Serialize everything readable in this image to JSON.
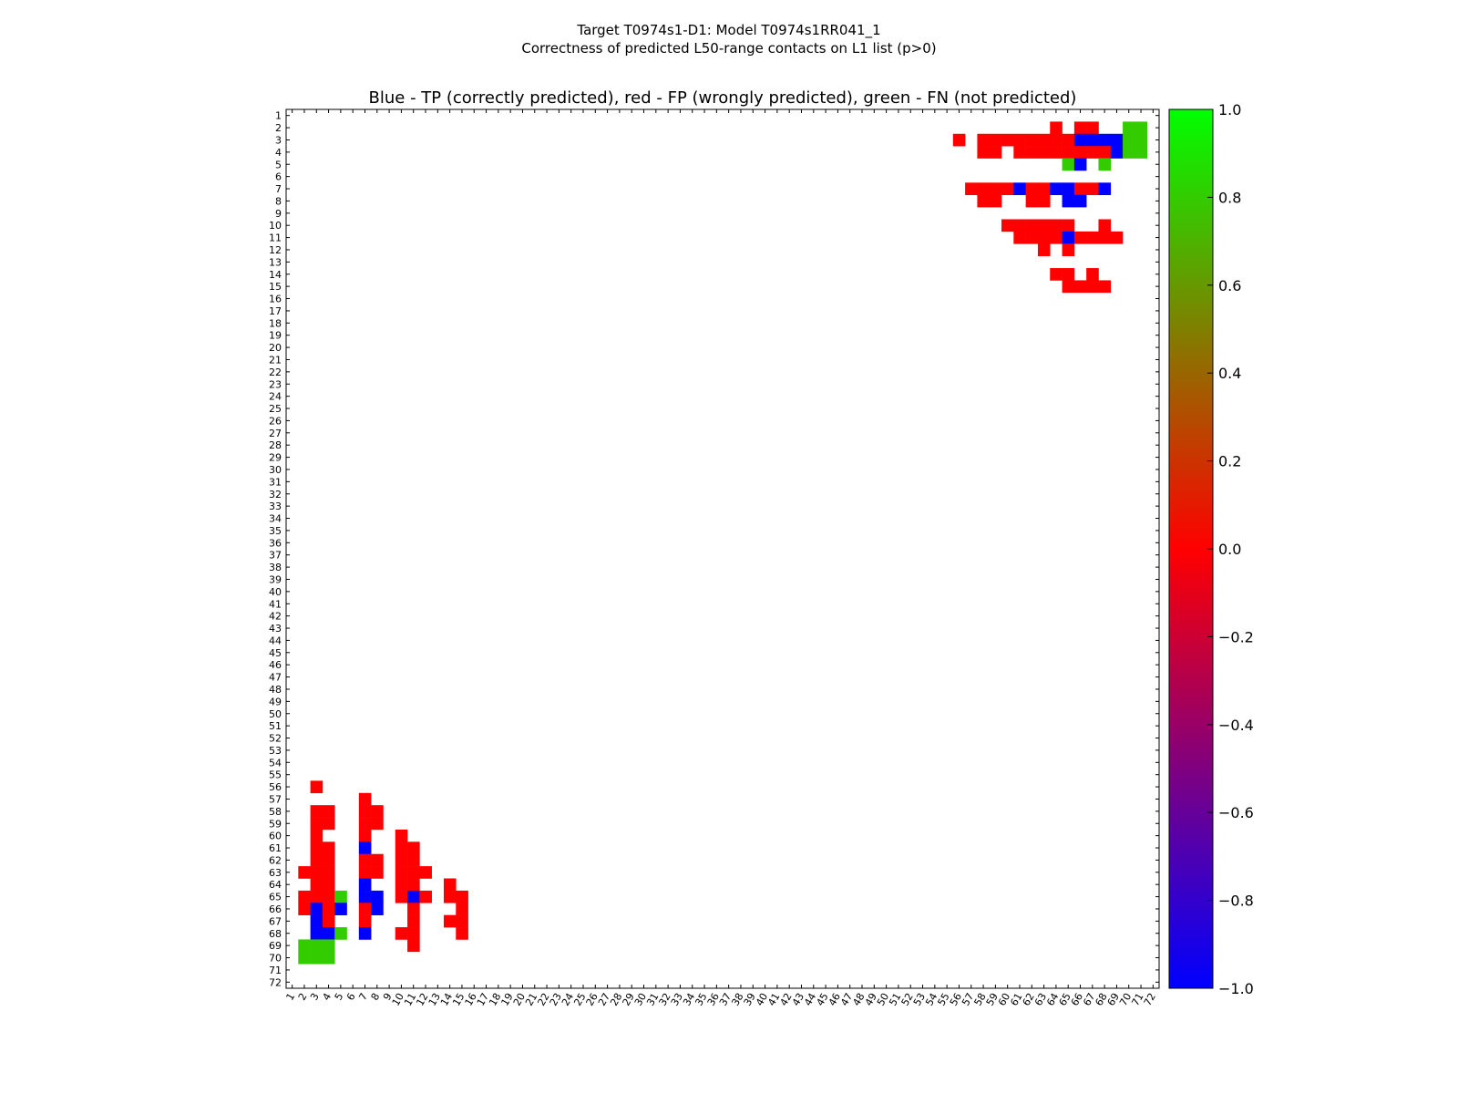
{
  "figure": {
    "suptitle_line1": "Target T0974s1-D1: Model T0974s1RR041_1",
    "suptitle_line2": "Correctness of predicted L50-range contacts on L1 list (p>0)"
  },
  "chart_data": {
    "type": "heatmap",
    "title": "Blue - TP (correctly predicted), red - FP (wrongly predicted), green - FN (not predicted)",
    "xlabel": "",
    "ylabel": "",
    "n_residues": 72,
    "x_ticks": [
      1,
      2,
      3,
      4,
      5,
      6,
      7,
      8,
      9,
      10,
      11,
      12,
      13,
      14,
      15,
      16,
      17,
      18,
      19,
      20,
      21,
      22,
      23,
      24,
      25,
      26,
      27,
      28,
      29,
      30,
      31,
      32,
      33,
      34,
      35,
      36,
      37,
      38,
      39,
      40,
      41,
      42,
      43,
      44,
      45,
      46,
      47,
      48,
      49,
      50,
      51,
      52,
      53,
      54,
      55,
      56,
      57,
      58,
      59,
      60,
      61,
      62,
      63,
      64,
      65,
      66,
      67,
      68,
      69,
      70,
      71,
      72
    ],
    "y_ticks": [
      1,
      2,
      3,
      4,
      5,
      6,
      7,
      8,
      9,
      10,
      11,
      12,
      13,
      14,
      15,
      16,
      17,
      18,
      19,
      20,
      21,
      22,
      23,
      24,
      25,
      26,
      27,
      28,
      29,
      30,
      31,
      32,
      33,
      34,
      35,
      36,
      37,
      38,
      39,
      40,
      41,
      42,
      43,
      44,
      45,
      46,
      47,
      48,
      49,
      50,
      51,
      52,
      53,
      54,
      55,
      56,
      57,
      58,
      59,
      60,
      61,
      62,
      63,
      64,
      65,
      66,
      67,
      68,
      69,
      70,
      71,
      72
    ],
    "value_meaning": {
      "-1": "TP (blue)",
      "0": "FP (red)",
      "0.8": "FN (green)"
    },
    "colorbar": {
      "min": -1.0,
      "max": 1.0,
      "ticks": [
        "1.0",
        "0.8",
        "0.6",
        "0.4",
        "0.2",
        "0.0",
        "−0.2",
        "−0.4",
        "−0.6",
        "−0.8",
        "−1.0"
      ],
      "tick_values": [
        1.0,
        0.8,
        0.6,
        0.4,
        0.2,
        0.0,
        -0.2,
        -0.4,
        -0.6,
        -0.8,
        -1.0
      ],
      "colors": [
        "#0000ff",
        "#ff0000",
        "#00ff00"
      ]
    },
    "cells": [
      {
        "i": 2,
        "j": 64,
        "v": 0
      },
      {
        "i": 2,
        "j": 66,
        "v": 0
      },
      {
        "i": 2,
        "j": 67,
        "v": 0
      },
      {
        "i": 2,
        "j": 70,
        "v": 0.8
      },
      {
        "i": 2,
        "j": 71,
        "v": 0.8
      },
      {
        "i": 3,
        "j": 56,
        "v": 0
      },
      {
        "i": 3,
        "j": 58,
        "v": 0
      },
      {
        "i": 3,
        "j": 59,
        "v": 0
      },
      {
        "i": 3,
        "j": 60,
        "v": 0
      },
      {
        "i": 3,
        "j": 61,
        "v": 0
      },
      {
        "i": 3,
        "j": 62,
        "v": 0
      },
      {
        "i": 3,
        "j": 63,
        "v": 0
      },
      {
        "i": 3,
        "j": 64,
        "v": 0
      },
      {
        "i": 3,
        "j": 65,
        "v": 0
      },
      {
        "i": 3,
        "j": 66,
        "v": -1
      },
      {
        "i": 3,
        "j": 67,
        "v": -1
      },
      {
        "i": 3,
        "j": 68,
        "v": -1
      },
      {
        "i": 3,
        "j": 69,
        "v": -1
      },
      {
        "i": 3,
        "j": 70,
        "v": 0.8
      },
      {
        "i": 3,
        "j": 71,
        "v": 0.8
      },
      {
        "i": 4,
        "j": 58,
        "v": 0
      },
      {
        "i": 4,
        "j": 59,
        "v": 0
      },
      {
        "i": 4,
        "j": 61,
        "v": 0
      },
      {
        "i": 4,
        "j": 62,
        "v": 0
      },
      {
        "i": 4,
        "j": 63,
        "v": 0
      },
      {
        "i": 4,
        "j": 64,
        "v": 0
      },
      {
        "i": 4,
        "j": 65,
        "v": 0
      },
      {
        "i": 4,
        "j": 66,
        "v": 0
      },
      {
        "i": 4,
        "j": 67,
        "v": 0
      },
      {
        "i": 4,
        "j": 68,
        "v": 0
      },
      {
        "i": 4,
        "j": 69,
        "v": -1
      },
      {
        "i": 4,
        "j": 70,
        "v": 0.8
      },
      {
        "i": 4,
        "j": 71,
        "v": 0.8
      },
      {
        "i": 5,
        "j": 65,
        "v": 0.8
      },
      {
        "i": 5,
        "j": 66,
        "v": -1
      },
      {
        "i": 5,
        "j": 68,
        "v": 0.8
      },
      {
        "i": 7,
        "j": 57,
        "v": 0
      },
      {
        "i": 7,
        "j": 58,
        "v": 0
      },
      {
        "i": 7,
        "j": 59,
        "v": 0
      },
      {
        "i": 7,
        "j": 60,
        "v": 0
      },
      {
        "i": 7,
        "j": 61,
        "v": -1
      },
      {
        "i": 7,
        "j": 62,
        "v": 0
      },
      {
        "i": 7,
        "j": 63,
        "v": 0
      },
      {
        "i": 7,
        "j": 64,
        "v": -1
      },
      {
        "i": 7,
        "j": 65,
        "v": -1
      },
      {
        "i": 7,
        "j": 66,
        "v": 0
      },
      {
        "i": 7,
        "j": 67,
        "v": 0
      },
      {
        "i": 7,
        "j": 68,
        "v": -1
      },
      {
        "i": 8,
        "j": 58,
        "v": 0
      },
      {
        "i": 8,
        "j": 59,
        "v": 0
      },
      {
        "i": 8,
        "j": 62,
        "v": 0
      },
      {
        "i": 8,
        "j": 63,
        "v": 0
      },
      {
        "i": 8,
        "j": 65,
        "v": -1
      },
      {
        "i": 8,
        "j": 66,
        "v": -1
      },
      {
        "i": 10,
        "j": 60,
        "v": 0
      },
      {
        "i": 10,
        "j": 61,
        "v": 0
      },
      {
        "i": 10,
        "j": 62,
        "v": 0
      },
      {
        "i": 10,
        "j": 63,
        "v": 0
      },
      {
        "i": 10,
        "j": 64,
        "v": 0
      },
      {
        "i": 10,
        "j": 65,
        "v": 0
      },
      {
        "i": 10,
        "j": 68,
        "v": 0
      },
      {
        "i": 11,
        "j": 61,
        "v": 0
      },
      {
        "i": 11,
        "j": 62,
        "v": 0
      },
      {
        "i": 11,
        "j": 63,
        "v": 0
      },
      {
        "i": 11,
        "j": 64,
        "v": 0
      },
      {
        "i": 11,
        "j": 65,
        "v": -1
      },
      {
        "i": 11,
        "j": 66,
        "v": 0
      },
      {
        "i": 11,
        "j": 67,
        "v": 0
      },
      {
        "i": 11,
        "j": 68,
        "v": 0
      },
      {
        "i": 11,
        "j": 69,
        "v": 0
      },
      {
        "i": 12,
        "j": 63,
        "v": 0
      },
      {
        "i": 12,
        "j": 65,
        "v": 0
      },
      {
        "i": 14,
        "j": 64,
        "v": 0
      },
      {
        "i": 14,
        "j": 65,
        "v": 0
      },
      {
        "i": 14,
        "j": 67,
        "v": 0
      },
      {
        "i": 15,
        "j": 65,
        "v": 0
      },
      {
        "i": 15,
        "j": 66,
        "v": 0
      },
      {
        "i": 15,
        "j": 67,
        "v": 0
      },
      {
        "i": 15,
        "j": 68,
        "v": 0
      },
      {
        "i": 56,
        "j": 3,
        "v": 0
      },
      {
        "i": 57,
        "j": 7,
        "v": 0
      },
      {
        "i": 58,
        "j": 3,
        "v": 0
      },
      {
        "i": 58,
        "j": 4,
        "v": 0
      },
      {
        "i": 58,
        "j": 7,
        "v": 0
      },
      {
        "i": 58,
        "j": 8,
        "v": 0
      },
      {
        "i": 59,
        "j": 3,
        "v": 0
      },
      {
        "i": 59,
        "j": 4,
        "v": 0
      },
      {
        "i": 59,
        "j": 7,
        "v": 0
      },
      {
        "i": 59,
        "j": 8,
        "v": 0
      },
      {
        "i": 60,
        "j": 3,
        "v": 0
      },
      {
        "i": 60,
        "j": 7,
        "v": 0
      },
      {
        "i": 60,
        "j": 10,
        "v": 0
      },
      {
        "i": 61,
        "j": 3,
        "v": 0
      },
      {
        "i": 61,
        "j": 4,
        "v": 0
      },
      {
        "i": 61,
        "j": 7,
        "v": -1
      },
      {
        "i": 61,
        "j": 10,
        "v": 0
      },
      {
        "i": 61,
        "j": 11,
        "v": 0
      },
      {
        "i": 62,
        "j": 3,
        "v": 0
      },
      {
        "i": 62,
        "j": 4,
        "v": 0
      },
      {
        "i": 62,
        "j": 7,
        "v": 0
      },
      {
        "i": 62,
        "j": 8,
        "v": 0
      },
      {
        "i": 62,
        "j": 10,
        "v": 0
      },
      {
        "i": 62,
        "j": 11,
        "v": 0
      },
      {
        "i": 63,
        "j": 2,
        "v": 0
      },
      {
        "i": 63,
        "j": 3,
        "v": 0
      },
      {
        "i": 63,
        "j": 4,
        "v": 0
      },
      {
        "i": 63,
        "j": 7,
        "v": 0
      },
      {
        "i": 63,
        "j": 8,
        "v": 0
      },
      {
        "i": 63,
        "j": 10,
        "v": 0
      },
      {
        "i": 63,
        "j": 11,
        "v": 0
      },
      {
        "i": 63,
        "j": 12,
        "v": 0
      },
      {
        "i": 64,
        "j": 3,
        "v": 0
      },
      {
        "i": 64,
        "j": 4,
        "v": 0
      },
      {
        "i": 64,
        "j": 7,
        "v": -1
      },
      {
        "i": 64,
        "j": 10,
        "v": 0
      },
      {
        "i": 64,
        "j": 11,
        "v": 0
      },
      {
        "i": 64,
        "j": 14,
        "v": 0
      },
      {
        "i": 65,
        "j": 2,
        "v": 0
      },
      {
        "i": 65,
        "j": 3,
        "v": 0
      },
      {
        "i": 65,
        "j": 4,
        "v": 0
      },
      {
        "i": 65,
        "j": 5,
        "v": 0.8
      },
      {
        "i": 65,
        "j": 7,
        "v": -1
      },
      {
        "i": 65,
        "j": 8,
        "v": -1
      },
      {
        "i": 65,
        "j": 10,
        "v": 0
      },
      {
        "i": 65,
        "j": 11,
        "v": -1
      },
      {
        "i": 65,
        "j": 12,
        "v": 0
      },
      {
        "i": 65,
        "j": 14,
        "v": 0
      },
      {
        "i": 65,
        "j": 15,
        "v": 0
      },
      {
        "i": 66,
        "j": 2,
        "v": 0
      },
      {
        "i": 66,
        "j": 3,
        "v": -1
      },
      {
        "i": 66,
        "j": 4,
        "v": 0
      },
      {
        "i": 66,
        "j": 5,
        "v": -1
      },
      {
        "i": 66,
        "j": 7,
        "v": 0
      },
      {
        "i": 66,
        "j": 8,
        "v": -1
      },
      {
        "i": 66,
        "j": 11,
        "v": 0
      },
      {
        "i": 66,
        "j": 15,
        "v": 0
      },
      {
        "i": 67,
        "j": 3,
        "v": -1
      },
      {
        "i": 67,
        "j": 4,
        "v": 0
      },
      {
        "i": 67,
        "j": 7,
        "v": 0
      },
      {
        "i": 67,
        "j": 11,
        "v": 0
      },
      {
        "i": 67,
        "j": 14,
        "v": 0
      },
      {
        "i": 67,
        "j": 15,
        "v": 0
      },
      {
        "i": 68,
        "j": 3,
        "v": -1
      },
      {
        "i": 68,
        "j": 4,
        "v": -1
      },
      {
        "i": 68,
        "j": 5,
        "v": 0.8
      },
      {
        "i": 68,
        "j": 7,
        "v": -1
      },
      {
        "i": 68,
        "j": 10,
        "v": 0
      },
      {
        "i": 68,
        "j": 11,
        "v": 0
      },
      {
        "i": 68,
        "j": 15,
        "v": 0
      },
      {
        "i": 69,
        "j": 2,
        "v": 0.8
      },
      {
        "i": 69,
        "j": 3,
        "v": 0.8
      },
      {
        "i": 69,
        "j": 4,
        "v": 0.8
      },
      {
        "i": 69,
        "j": 11,
        "v": 0
      },
      {
        "i": 70,
        "j": 2,
        "v": 0.8
      },
      {
        "i": 70,
        "j": 3,
        "v": 0.8
      },
      {
        "i": 70,
        "j": 4,
        "v": 0.8
      }
    ]
  }
}
